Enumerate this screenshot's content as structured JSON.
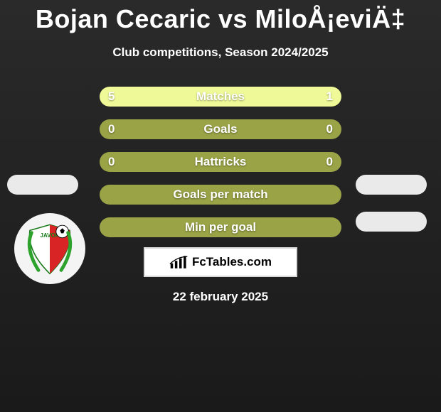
{
  "title": "Bojan Cecaric vs MiloÅ¡eviÄ‡",
  "subtitle": "Club competitions, Season 2024/2025",
  "colors": {
    "bg_top": "#2a2a2a",
    "bg_bottom": "#1a1a1a",
    "bar_base": "#9aa346",
    "bar_fill": "#eff998",
    "text": "#ffffff",
    "pill": "#eaeaea",
    "brand_border": "#d8d8d8"
  },
  "bars": [
    {
      "label": "Matches",
      "left": "5",
      "right": "1",
      "left_pct": 78,
      "right_pct": 22
    },
    {
      "label": "Goals",
      "left": "0",
      "right": "0",
      "left_pct": 0,
      "right_pct": 0
    },
    {
      "label": "Hattricks",
      "left": "0",
      "right": "0",
      "left_pct": 0,
      "right_pct": 0
    },
    {
      "label": "Goals per match",
      "left": "",
      "right": "",
      "left_pct": 0,
      "right_pct": 0
    },
    {
      "label": "Min per goal",
      "left": "",
      "right": "",
      "left_pct": 0,
      "right_pct": 0
    }
  ],
  "brand": "FcTables.com",
  "date": "22 february 2025",
  "player_left_team": "Javor Ivanjica"
}
